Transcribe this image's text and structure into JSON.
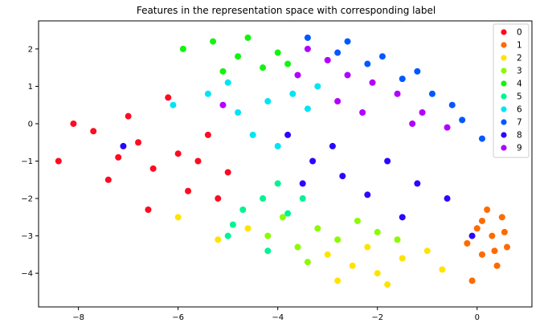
{
  "chart_data": {
    "type": "scatter",
    "title": "Features in the representation space with corresponding label",
    "xlabel": "",
    "ylabel": "",
    "xlim": [
      -8.8,
      1.1
    ],
    "ylim": [
      -4.9,
      2.75
    ],
    "xticks": [
      -8,
      -6,
      -4,
      -2,
      0
    ],
    "yticks": [
      2,
      1,
      0,
      -1,
      -2,
      -3,
      -4
    ],
    "tick_labels": {
      "x": [
        "−8",
        "−6",
        "−4",
        "−2",
        "0"
      ],
      "y": [
        "2",
        "1",
        "0",
        "−1",
        "−2",
        "−3",
        "−4"
      ]
    },
    "grid": false,
    "legend_position": "top-right",
    "series": [
      {
        "name": "0",
        "color": "#ff0a22",
        "values": [
          [
            -8.4,
            -1.0
          ],
          [
            -8.1,
            0.0
          ],
          [
            -7.7,
            -0.2
          ],
          [
            -7.4,
            -1.5
          ],
          [
            -7.0,
            0.2
          ],
          [
            -6.8,
            -0.5
          ],
          [
            -6.5,
            -1.2
          ],
          [
            -6.2,
            0.7
          ],
          [
            -6.0,
            -0.8
          ],
          [
            -5.8,
            -1.8
          ],
          [
            -5.6,
            -1.0
          ],
          [
            -5.4,
            -0.3
          ],
          [
            -5.2,
            -2.0
          ],
          [
            -6.6,
            -2.3
          ],
          [
            -7.2,
            -0.9
          ],
          [
            -5.0,
            -1.3
          ]
        ]
      },
      {
        "name": "1",
        "color": "#ff6a00",
        "values": [
          [
            0.5,
            -2.5
          ],
          [
            0.3,
            -3.0
          ],
          [
            0.1,
            -3.5
          ],
          [
            0.6,
            -3.3
          ],
          [
            0.2,
            -2.3
          ],
          [
            0.4,
            -3.8
          ],
          [
            -0.1,
            -4.2
          ],
          [
            0.0,
            -2.8
          ],
          [
            0.55,
            -2.9
          ],
          [
            0.35,
            -3.4
          ],
          [
            -0.2,
            -3.2
          ],
          [
            0.1,
            -2.6
          ]
        ]
      },
      {
        "name": "2",
        "color": "#ffe300",
        "values": [
          [
            -2.8,
            -4.2
          ],
          [
            -2.5,
            -3.8
          ],
          [
            -2.0,
            -4.0
          ],
          [
            -1.5,
            -3.6
          ],
          [
            -1.0,
            -3.4
          ],
          [
            -0.7,
            -3.9
          ],
          [
            -3.0,
            -3.5
          ],
          [
            -1.8,
            -4.3
          ],
          [
            -2.2,
            -3.3
          ],
          [
            -4.6,
            -2.8
          ],
          [
            -6.0,
            -2.5
          ],
          [
            -5.2,
            -3.1
          ]
        ]
      },
      {
        "name": "3",
        "color": "#8cfa00",
        "values": [
          [
            -3.6,
            -3.3
          ],
          [
            -3.2,
            -2.8
          ],
          [
            -2.8,
            -3.1
          ],
          [
            -2.4,
            -2.6
          ],
          [
            -3.9,
            -2.5
          ],
          [
            -4.2,
            -3.0
          ],
          [
            -2.0,
            -2.9
          ],
          [
            -3.4,
            -3.7
          ],
          [
            -1.6,
            -3.1
          ]
        ]
      },
      {
        "name": "4",
        "color": "#11f40f",
        "values": [
          [
            -5.3,
            2.2
          ],
          [
            -4.8,
            1.8
          ],
          [
            -4.3,
            1.5
          ],
          [
            -4.0,
            1.9
          ],
          [
            -5.9,
            2.0
          ],
          [
            -4.6,
            2.3
          ],
          [
            -3.8,
            1.6
          ],
          [
            -5.1,
            1.4
          ]
        ]
      },
      {
        "name": "5",
        "color": "#00f491",
        "values": [
          [
            -4.7,
            -2.3
          ],
          [
            -4.3,
            -2.0
          ],
          [
            -3.8,
            -2.4
          ],
          [
            -4.0,
            -1.6
          ],
          [
            -4.9,
            -2.7
          ],
          [
            -3.5,
            -2.0
          ],
          [
            -5.0,
            -3.0
          ],
          [
            -4.2,
            -3.4
          ]
        ]
      },
      {
        "name": "6",
        "color": "#00e5f5",
        "values": [
          [
            -4.2,
            0.6
          ],
          [
            -4.8,
            0.3
          ],
          [
            -3.7,
            0.8
          ],
          [
            -4.5,
            -0.3
          ],
          [
            -3.4,
            0.4
          ],
          [
            -5.4,
            0.8
          ],
          [
            -4.0,
            -0.6
          ],
          [
            -3.2,
            1.0
          ],
          [
            -6.1,
            0.5
          ],
          [
            -5.0,
            1.1
          ]
        ]
      },
      {
        "name": "7",
        "color": "#0058ff",
        "values": [
          [
            -2.8,
            1.9
          ],
          [
            -2.2,
            1.6
          ],
          [
            -1.5,
            1.2
          ],
          [
            -0.9,
            0.8
          ],
          [
            -0.3,
            0.1
          ],
          [
            -1.2,
            1.4
          ],
          [
            -3.4,
            2.3
          ],
          [
            -2.6,
            2.2
          ],
          [
            -0.5,
            0.5
          ],
          [
            -1.9,
            1.8
          ],
          [
            0.1,
            -0.4
          ]
        ]
      },
      {
        "name": "8",
        "color": "#2a07ff",
        "values": [
          [
            -3.8,
            -0.3
          ],
          [
            -3.3,
            -1.0
          ],
          [
            -2.7,
            -1.4
          ],
          [
            -2.2,
            -1.9
          ],
          [
            -1.8,
            -1.0
          ],
          [
            -1.2,
            -1.6
          ],
          [
            -2.9,
            -0.6
          ],
          [
            -3.5,
            -1.6
          ],
          [
            -0.6,
            -2.0
          ],
          [
            -1.5,
            -2.5
          ],
          [
            -7.1,
            -0.6
          ],
          [
            -0.1,
            -3.0
          ]
        ]
      },
      {
        "name": "9",
        "color": "#b200ff",
        "values": [
          [
            -3.4,
            2.0
          ],
          [
            -3.0,
            1.7
          ],
          [
            -2.6,
            1.3
          ],
          [
            -2.1,
            1.1
          ],
          [
            -1.6,
            0.8
          ],
          [
            -1.1,
            0.3
          ],
          [
            -0.6,
            -0.1
          ],
          [
            -2.8,
            0.6
          ],
          [
            -2.3,
            0.3
          ],
          [
            -3.6,
            1.3
          ],
          [
            -1.3,
            0.0
          ],
          [
            -5.1,
            0.5
          ]
        ]
      }
    ]
  }
}
